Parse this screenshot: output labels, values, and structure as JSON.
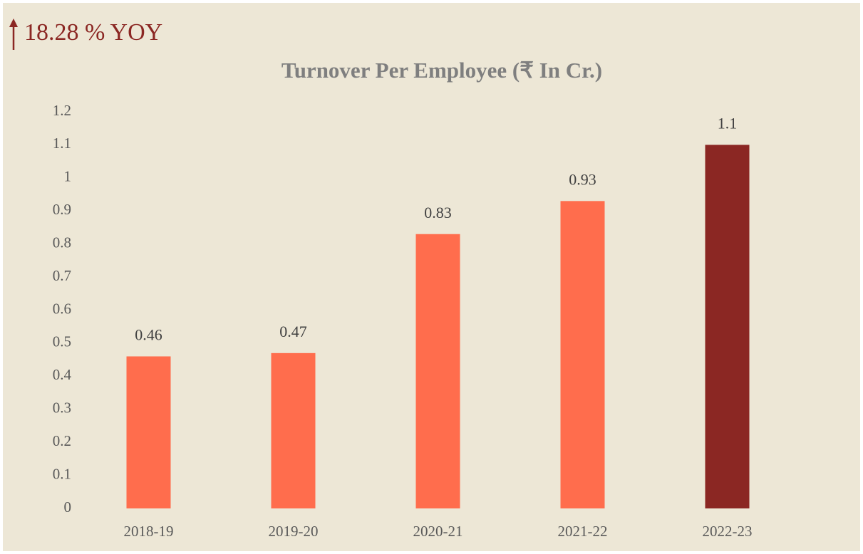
{
  "chart_data": {
    "type": "bar",
    "title": "Turnover Per Employee (₹ In Cr.)",
    "annotation": "18.28 % YOY",
    "categories": [
      "2018-19",
      "2019-20",
      "2020-21",
      "2021-22",
      "2022-23"
    ],
    "values": [
      0.46,
      0.47,
      0.83,
      0.93,
      1.1
    ],
    "colors": [
      "#ff6d4d",
      "#ff6d4d",
      "#ff6d4d",
      "#ff6d4d",
      "#8b2723"
    ],
    "ylim": [
      0,
      1.2
    ],
    "yticks": [
      0,
      0.1,
      0.2,
      0.3,
      0.4,
      0.5,
      0.6,
      0.7,
      0.8,
      0.9,
      1,
      1.1,
      1.2
    ],
    "grid": false
  }
}
